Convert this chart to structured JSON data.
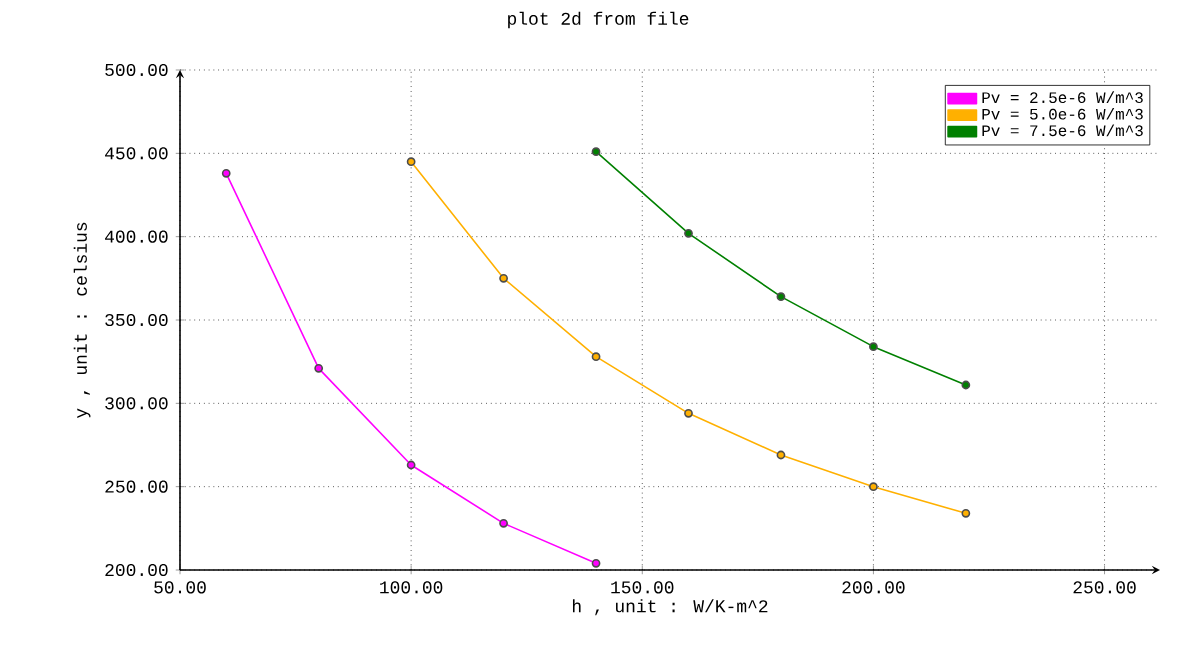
{
  "chart_data": {
    "type": "line",
    "title": "plot 2d from file",
    "xlabel": "h , unit : W/K-m^2",
    "ylabel": "y , unit : celsius",
    "xlim": [
      50,
      262
    ],
    "ylim": [
      200,
      500
    ],
    "xticks": [
      {
        "value": 50,
        "label": "50.00"
      },
      {
        "value": 100,
        "label": "100.00"
      },
      {
        "value": 150,
        "label": "150.00"
      },
      {
        "value": 200,
        "label": "200.00"
      },
      {
        "value": 250,
        "label": "250.00"
      }
    ],
    "yticks": [
      {
        "value": 200,
        "label": "200.00"
      },
      {
        "value": 250,
        "label": "250.00"
      },
      {
        "value": 300,
        "label": "300.00"
      },
      {
        "value": 350,
        "label": "350.00"
      },
      {
        "value": 400,
        "label": "400.00"
      },
      {
        "value": 450,
        "label": "450.00"
      },
      {
        "value": 500,
        "label": "500.00"
      }
    ],
    "grid": true,
    "legend": "top right",
    "marker": "circle",
    "line_style": "solid",
    "series": [
      {
        "name": "Pv = 2.5e-6 W/m^3",
        "color": "#ff00ff",
        "x": [
          60,
          80,
          100,
          120,
          140
        ],
        "values": [
          438,
          321,
          263,
          228,
          204
        ]
      },
      {
        "name": "Pv = 5.0e-6 W/m^3",
        "color": "#ffb000",
        "x": [
          100,
          120,
          140,
          160,
          180,
          200,
          220
        ],
        "values": [
          445,
          375,
          328,
          294,
          269,
          250,
          234
        ]
      },
      {
        "name": "Pv = 7.5e-6 W/m^3",
        "color": "#008000",
        "x": [
          140,
          160,
          180,
          200,
          220
        ],
        "values": [
          451,
          402,
          364,
          334,
          311
        ]
      }
    ]
  }
}
